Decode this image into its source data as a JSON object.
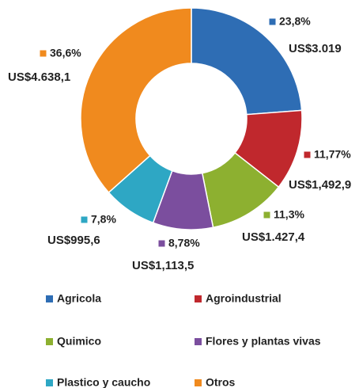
{
  "chart_data": {
    "type": "donut",
    "categories": [
      "Agricola",
      "Agroindustrial",
      "Quimico",
      "Flores y plantas vivas",
      "Plastico y caucho",
      "Otros"
    ],
    "values": [
      23.8,
      11.77,
      11.3,
      8.78,
      7.8,
      36.6
    ],
    "value_labels": [
      "23,8%",
      "11,77%",
      "11,3%",
      "8,78%",
      "7,8%",
      "36,6%"
    ],
    "amounts": [
      "US$3.019",
      "US$1,492,9",
      "US$1.427,4",
      "US$1,113,5",
      "US$995,6",
      "US$4.638,1"
    ],
    "colors": [
      "#2e6db4",
      "#c0282d",
      "#8db030",
      "#7b4e9e",
      "#2ea7c4",
      "#f08a1e"
    ],
    "legend": "bottom"
  }
}
